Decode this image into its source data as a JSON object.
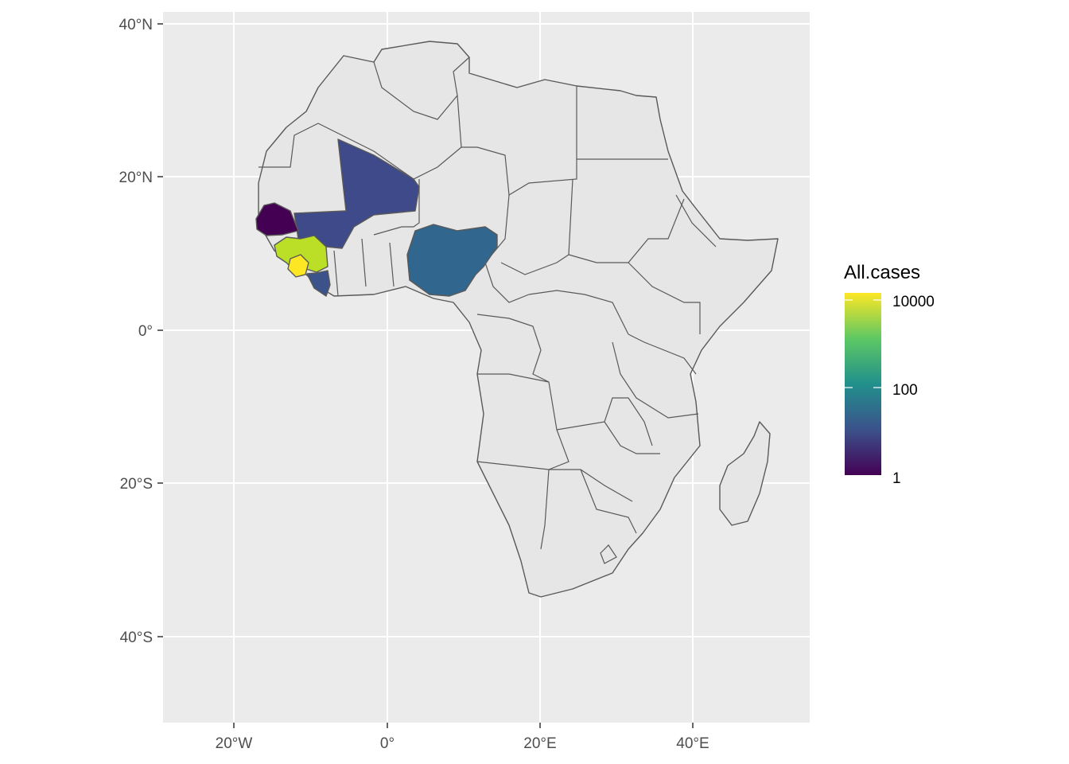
{
  "chart_data": {
    "type": "choropleth",
    "region": "Africa",
    "x_ticks": [
      "20°W",
      "0°",
      "20°E",
      "40°E"
    ],
    "y_ticks": [
      "40°N",
      "20°N",
      "0°",
      "20°S",
      "40°S"
    ],
    "legend": {
      "title": "All.cases",
      "scale": "log10",
      "labels": [
        "10000",
        "100",
        "1"
      ],
      "palette": [
        "#440154",
        "#3B528B",
        "#21908C",
        "#5DC863",
        "#FDE725"
      ]
    },
    "countries": [
      {
        "name": "Guinea",
        "cases": 3800,
        "color": "#BBDF27"
      },
      {
        "name": "Sierra Leone",
        "cases": 14000,
        "color": "#FDE725"
      },
      {
        "name": "Liberia",
        "cases": 10,
        "color": "#3B528B"
      },
      {
        "name": "Nigeria",
        "cases": 20,
        "color": "#31668E"
      },
      {
        "name": "Mali",
        "cases": 8,
        "color": "#3E4A89"
      },
      {
        "name": "Senegal",
        "cases": 1,
        "color": "#440154"
      }
    ],
    "colors": {
      "panel": "#EBEBEB",
      "land": "#E6E6E6",
      "border": "#595959",
      "grid": "#FFFFFF",
      "no_data": "#E6E6E6"
    }
  }
}
